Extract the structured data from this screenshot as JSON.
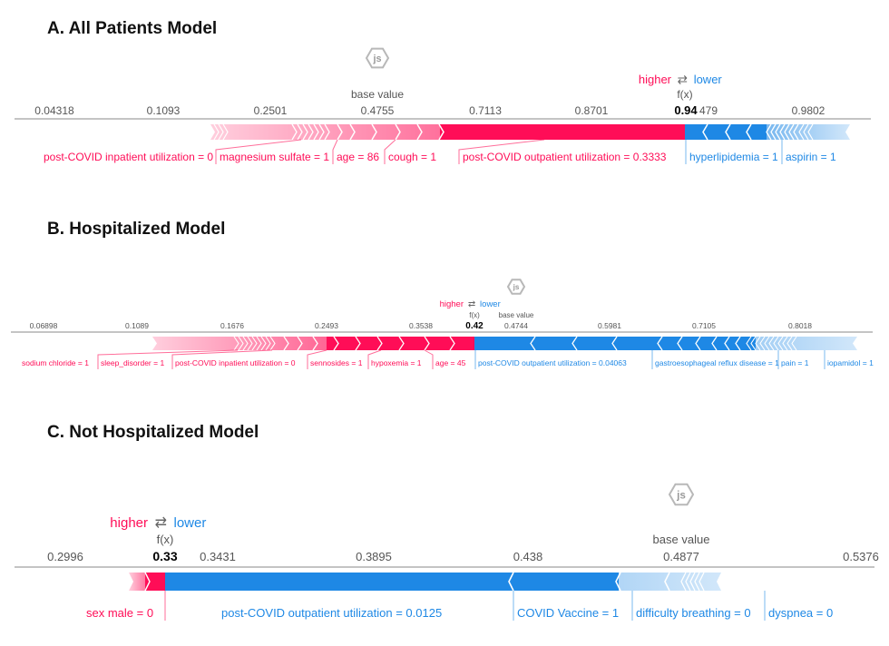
{
  "colors": {
    "higher": "#ff0d57",
    "lower": "#1e88e5",
    "axis": "#555555",
    "js": "#b8b8b8"
  },
  "labels": {
    "higher": "higher",
    "lower": "lower",
    "fx": "f(x)",
    "base": "base value",
    "js": "js"
  },
  "chart_data": [
    {
      "type": "force",
      "title": "A.   All Patients Model",
      "ticks": [
        "0.04318",
        "0.1093",
        "0.2501",
        "0.4755",
        "0.7113",
        "0.8701",
        "0.9802"
      ],
      "output_value": "0.94",
      "output_tick_tail": "479",
      "base_value": 0.4755,
      "positive_features": [
        "post-COVID inpatient utilization = 0",
        "magnesium sulfate = 1",
        "age = 86",
        "cough = 1",
        "post-COVID outpatient utilization = 0.3333"
      ],
      "negative_features": [
        "hyperlipidemia = 1",
        "aspirin = 1"
      ]
    },
    {
      "type": "force",
      "title": "B.   Hospitalized Model",
      "ticks": [
        "0.06898",
        "0.1089",
        "0.1676",
        "0.2493",
        "0.3538",
        "0.4744",
        "0.5981",
        "0.7105",
        "0.8018"
      ],
      "output_value": "0.42",
      "base_value": 0.4744,
      "positive_features": [
        "sodium chloride = 1",
        "sleep_disorder = 1",
        "post-COVID inpatient utilization = 0",
        "sennosides = 1",
        "hypoxemia = 1",
        "age = 45"
      ],
      "negative_features": [
        "post-COVID outpatient utilization = 0.04063",
        "gastroesophageal reflux disease = 1",
        "pain = 1",
        "iopamidol = 1"
      ]
    },
    {
      "type": "force",
      "title": "C.   Not Hospitalized Model",
      "ticks": [
        "0.2996",
        "0.3431",
        "0.3895",
        "0.438",
        "0.4877",
        "0.5376"
      ],
      "output_value": "0.33",
      "base_value": 0.4877,
      "positive_features": [
        "sex male = 0"
      ],
      "negative_features": [
        "post-COVID outpatient utilization = 0.0125",
        "COVID Vaccine = 1",
        "difficulty breathing = 0",
        "dyspnea = 0"
      ]
    }
  ]
}
